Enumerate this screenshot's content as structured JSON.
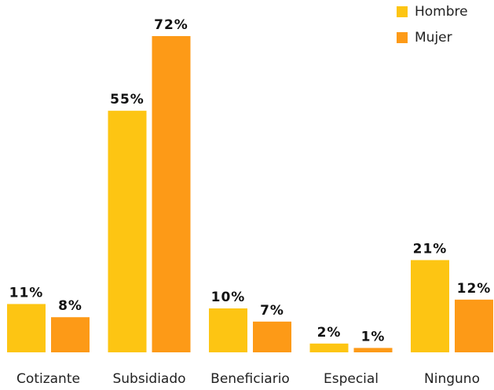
{
  "chart_data": {
    "type": "bar",
    "categories": [
      "Cotizante",
      "Subsidiado",
      "Beneficiario",
      "Especial",
      "Ninguno"
    ],
    "series": [
      {
        "name": "Hombre",
        "color": "#fdc513",
        "values": [
          11,
          55,
          10,
          2,
          21
        ],
        "value_labels": [
          "11%",
          "55%",
          "10%",
          "2%",
          "21%"
        ]
      },
      {
        "name": "Mujer",
        "color": "#fd9a17",
        "values": [
          8,
          72,
          7,
          1,
          12
        ],
        "value_labels": [
          "8%",
          "72%",
          "7%",
          "1%",
          "12%"
        ]
      }
    ],
    "legend": "upper right"
  }
}
